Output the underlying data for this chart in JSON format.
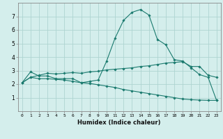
{
  "xlabel": "Humidex (Indice chaleur)",
  "x": [
    0,
    1,
    2,
    3,
    4,
    5,
    6,
    7,
    8,
    9,
    10,
    11,
    12,
    13,
    14,
    15,
    16,
    17,
    18,
    19,
    20,
    21,
    22,
    23
  ],
  "line_main": [
    2.1,
    2.9,
    2.6,
    2.6,
    2.4,
    2.4,
    2.4,
    2.1,
    2.2,
    2.3,
    3.7,
    5.4,
    6.7,
    7.3,
    7.5,
    7.1,
    5.3,
    4.9,
    3.8,
    3.7,
    3.2,
    2.7,
    2.5,
    0.8
  ],
  "line_upper": [
    2.1,
    2.5,
    2.65,
    2.8,
    2.75,
    2.8,
    2.85,
    2.8,
    2.9,
    2.95,
    3.05,
    3.1,
    3.15,
    3.2,
    3.3,
    3.35,
    3.45,
    3.55,
    3.6,
    3.65,
    3.3,
    3.3,
    2.65,
    2.5
  ],
  "line_lower": [
    2.1,
    2.5,
    2.4,
    2.4,
    2.35,
    2.3,
    2.2,
    2.1,
    2.05,
    1.95,
    1.85,
    1.75,
    1.6,
    1.5,
    1.4,
    1.3,
    1.2,
    1.1,
    1.0,
    0.9,
    0.85,
    0.82,
    0.8,
    0.8
  ],
  "line_color": "#1a7a6e",
  "bg_color": "#d4eeec",
  "grid_color": "#aed4d1",
  "ylim": [
    0,
    8
  ],
  "yticks": [
    1,
    2,
    3,
    4,
    5,
    6,
    7
  ],
  "xticks": [
    0,
    1,
    2,
    3,
    4,
    5,
    6,
    7,
    8,
    9,
    10,
    11,
    12,
    13,
    14,
    15,
    16,
    17,
    18,
    19,
    20,
    21,
    22,
    23
  ]
}
